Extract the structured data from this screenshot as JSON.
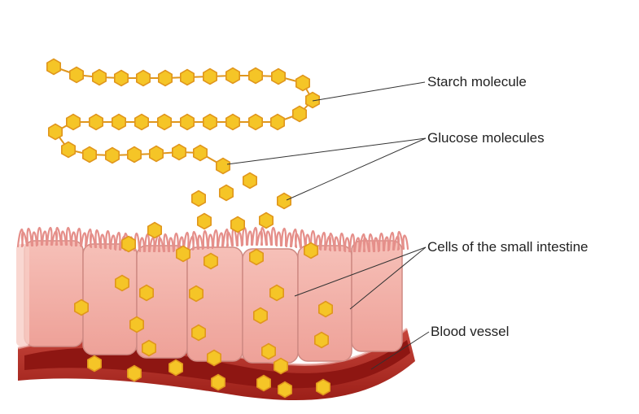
{
  "labels": {
    "starch": "Starch molecule",
    "glucose": "Glucose molecules",
    "cells": "Cells of the small intestine",
    "blood": "Blood vessel"
  },
  "colors": {
    "glucose_fill": "#f5c527",
    "glucose_stroke": "#e0961d",
    "chain_link": "#e0961d",
    "cell_fill": "#f1aca3",
    "cell_border": "#cf8a83",
    "villi": "#e58f8a",
    "vessel_outer": "#b5352e",
    "vessel_inner": "#8e1612",
    "leader_line": "#333333"
  },
  "icons": [
    "glucose-hexagon-icon"
  ]
}
